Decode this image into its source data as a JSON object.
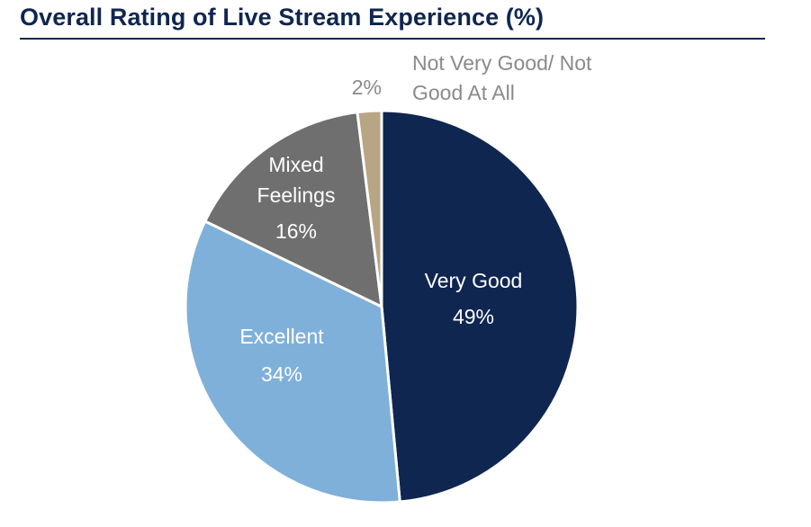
{
  "chart_data": {
    "type": "pie",
    "title": "Overall Rating of Live Stream Experience (%)",
    "slices": [
      {
        "name": "Very Good",
        "label_lines": [
          "Very Good"
        ],
        "value": 49,
        "value_label": "49%",
        "color": "#0f2650",
        "label_color": "#ffffff"
      },
      {
        "name": "Excellent",
        "label_lines": [
          "Excellent"
        ],
        "value": 34,
        "value_label": "34%",
        "color": "#7fb0da",
        "label_color": "#ffffff"
      },
      {
        "name": "Mixed Feelings",
        "label_lines": [
          "Mixed",
          "Feelings"
        ],
        "value": 16,
        "value_label": "16%",
        "color": "#6f6f6f",
        "label_color": "#ffffff"
      },
      {
        "name": "Not Very Good/ Not Good At All",
        "label_lines": [
          "Not Very Good/ Not",
          "Good At All"
        ],
        "value": 2,
        "value_label": "2%",
        "color": "#b8a584",
        "label_color": "#8a8a8a"
      }
    ]
  }
}
